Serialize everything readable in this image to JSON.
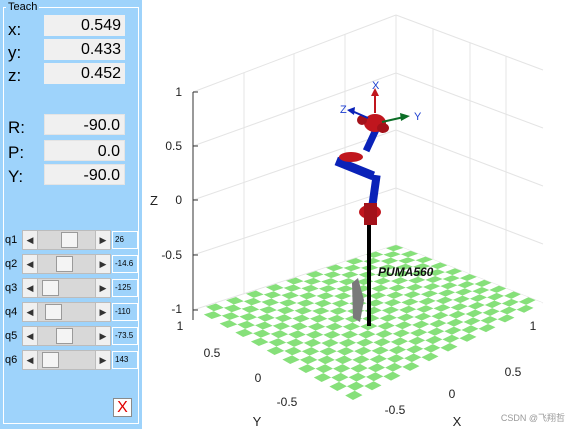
{
  "teach": {
    "title": "Teach",
    "pose": {
      "x_label": "x:",
      "x_value": "0.549",
      "y_label": "y:",
      "y_value": "0.433",
      "z_label": "z:",
      "z_value": "0.452",
      "r_label": "R:",
      "r_value": "-90.0",
      "p_label": "P:",
      "p_value": "0.0",
      "yaw_label": "Y:",
      "yaw_value": "-90.0"
    },
    "joints": [
      {
        "label": "q1",
        "value": "26",
        "fraction": 0.57
      },
      {
        "label": "q2",
        "value": "-14.6",
        "fraction": 0.46
      },
      {
        "label": "q3",
        "value": "-125",
        "fraction": 0.12
      },
      {
        "label": "q4",
        "value": "-110",
        "fraction": 0.2
      },
      {
        "label": "q5",
        "value": "-73.5",
        "fraction": 0.45
      },
      {
        "label": "q6",
        "value": "143",
        "fraction": 0.12
      }
    ],
    "quit_label": "X",
    "quit_color": "#e00000"
  },
  "plot": {
    "z_ticks": [
      "1",
      "0.5",
      "0",
      "-0.5",
      "-1"
    ],
    "x_ticks": [
      "1",
      "0.5",
      "0",
      "-0.5"
    ],
    "y_ticks": [
      "1",
      "0.5",
      "0",
      "-0.5"
    ],
    "xlabel": "X",
    "ylabel": "Y",
    "zlabel": "Z",
    "robot_name": "PUMA560",
    "frame_labels": {
      "x": "X",
      "y": "Y",
      "z": "Z"
    },
    "colors": {
      "floor_light": "#ffffff",
      "floor_check": "#86e07a",
      "link": "#0a22b8",
      "joint": "#c0161e",
      "base": "#000000"
    }
  },
  "watermark": "CSDN @飞翔哲"
}
